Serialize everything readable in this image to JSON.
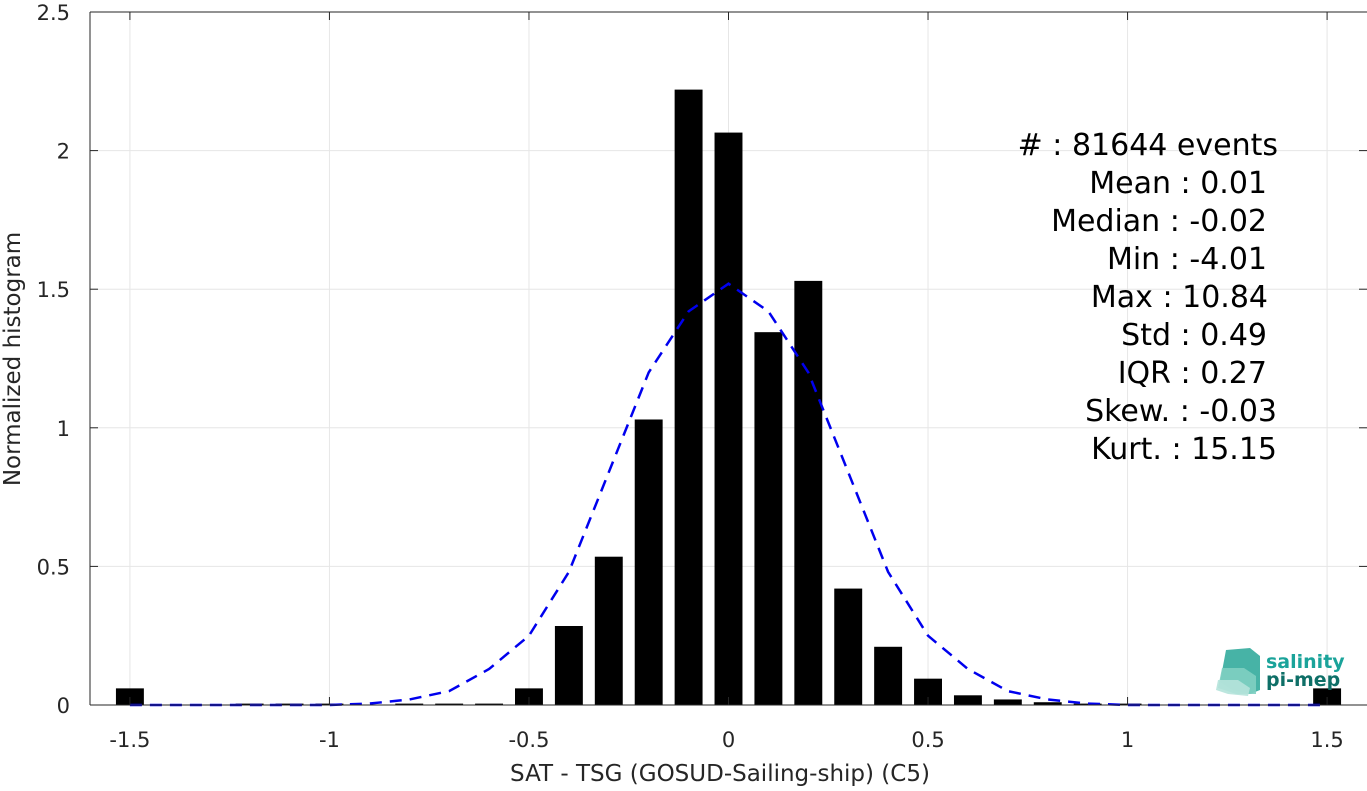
{
  "chart_data": {
    "type": "bar",
    "xlabel": "SAT - TSG (GOSUD-Sailing-ship) (C5)",
    "ylabel": "Normalized histogram",
    "xlim": [
      -1.6,
      1.6
    ],
    "ylim": [
      0,
      2.5
    ],
    "grid": true,
    "x_ticks": [
      -1.5,
      -1,
      -0.5,
      0,
      0.5,
      1,
      1.5
    ],
    "x_tick_labels": [
      "-1.5",
      "-1",
      "-0.5",
      "0",
      "0.5",
      "1",
      "1.5"
    ],
    "y_ticks": [
      0,
      0.5,
      1,
      1.5,
      2,
      2.5
    ],
    "y_tick_labels": [
      "0",
      "0.5",
      "1",
      "1.5",
      "2",
      "2.5"
    ],
    "bar_width": 0.07,
    "bar_color": "#000000",
    "bars": {
      "x": [
        -1.5,
        -1.4,
        -1.3,
        -1.2,
        -1.1,
        -1.0,
        -0.9,
        -0.8,
        -0.7,
        -0.6,
        -0.5,
        -0.4,
        -0.3,
        -0.2,
        -0.1,
        0.0,
        0.1,
        0.2,
        0.3,
        0.4,
        0.5,
        0.6,
        0.7,
        0.8,
        0.9,
        1.0,
        1.1,
        1.2,
        1.3,
        1.4,
        1.5
      ],
      "values": [
        0.06,
        0.0,
        0.0,
        0.005,
        0.005,
        0.005,
        0.0,
        0.005,
        0.005,
        0.005,
        0.06,
        0.285,
        0.535,
        1.03,
        2.22,
        2.065,
        1.345,
        1.53,
        0.42,
        0.21,
        0.095,
        0.035,
        0.02,
        0.01,
        0.005,
        0.005,
        0.0,
        0.0,
        0.0,
        0.0,
        0.06
      ]
    },
    "fit_curve": {
      "name": "",
      "style": "dashed",
      "color": "#0000ee",
      "x": [
        -1.5,
        -1.4,
        -1.3,
        -1.2,
        -1.1,
        -1.0,
        -0.9,
        -0.8,
        -0.7,
        -0.6,
        -0.5,
        -0.4,
        -0.3,
        -0.2,
        -0.1,
        0.0,
        0.1,
        0.2,
        0.3,
        0.4,
        0.5,
        0.6,
        0.7,
        0.8,
        0.9,
        1.0,
        1.1,
        1.2,
        1.3,
        1.4,
        1.5
      ],
      "y": [
        0.0,
        0.0,
        0.0,
        0.0,
        0.0,
        0.0,
        0.005,
        0.02,
        0.05,
        0.13,
        0.25,
        0.48,
        0.84,
        1.2,
        1.42,
        1.52,
        1.42,
        1.2,
        0.84,
        0.48,
        0.25,
        0.13,
        0.05,
        0.02,
        0.005,
        0.0,
        0.0,
        0.0,
        0.0,
        0.0,
        0.0
      ]
    },
    "annotations": [
      "#  : 81644 events",
      "Mean : 0.01",
      "Median : -0.02",
      "Min : -4.01",
      "Max : 10.84",
      "Std : 0.49",
      "IQR : 0.27",
      "Skew. : -0.03",
      "Kurt. : 15.15"
    ],
    "logo": {
      "line1": "salinity",
      "line2": "pi-mep",
      "color": "#1aa39a"
    }
  }
}
